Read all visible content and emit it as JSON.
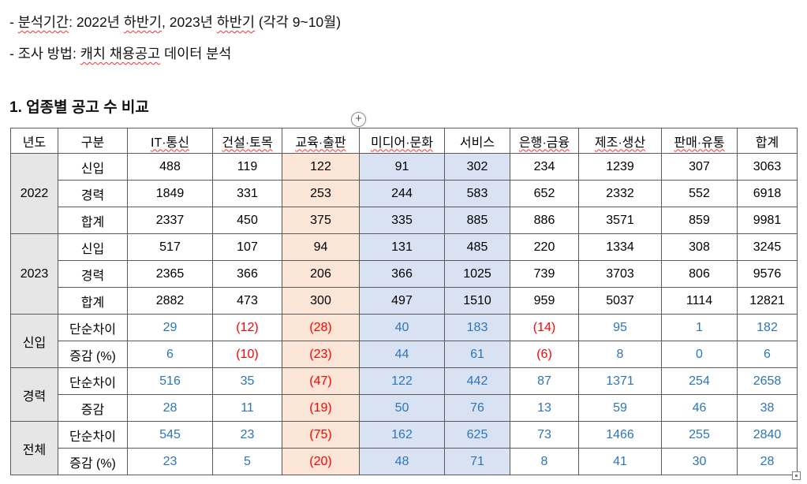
{
  "colors": {
    "orange_column_bg": "#FBE5D6",
    "blue_column_bg": "#D9E2F3",
    "group_label_bg": "#E7E6E6",
    "diff_positive_text": "#2E75B6",
    "diff_negative_text": "#FF0000",
    "spellcheck_underline": "#FF2F2F",
    "table_border": "#595959"
  },
  "intro": {
    "bullets": [
      {
        "parts": [
          {
            "t": "- "
          },
          {
            "t": "분석기간",
            "wavy": true
          },
          {
            "t": ": 2022년 "
          },
          {
            "t": "하반기",
            "wavy": true
          },
          {
            "t": ", 2023년 "
          },
          {
            "t": "하반기",
            "wavy": true
          },
          {
            "t": " (각각 9~10월)"
          }
        ]
      },
      {
        "parts": [
          {
            "t": "- 조사 방법: "
          },
          {
            "t": "캐치 채용공고",
            "wavy": true
          },
          {
            "t": " 데이터 분석"
          }
        ]
      }
    ],
    "heading": "1. 업종별 공고 수 비교"
  },
  "handles": {
    "insert_plus": "+"
  },
  "table": {
    "columns": [
      "년도",
      "구분",
      "IT·통신",
      "건설·토목",
      "교육·출판",
      "미디어·문화",
      "서비스",
      "은행·금융",
      "제조·생산",
      "판매·유통",
      "합계"
    ],
    "misspelled_columns": [
      2,
      3,
      4,
      5,
      7,
      8,
      9
    ],
    "highlight_orange_value_index": 2,
    "highlight_blue_value_indexes": [
      3,
      4
    ],
    "groups": [
      {
        "label": "2022",
        "diff": false,
        "rows": [
          {
            "label": "신입",
            "bold": false,
            "values": [
              "488",
              "119",
              "122",
              "91",
              "302",
              "234",
              "1239",
              "307",
              "3063"
            ]
          },
          {
            "label": "경력",
            "bold": false,
            "values": [
              "1849",
              "331",
              "253",
              "244",
              "583",
              "652",
              "2332",
              "552",
              "6918"
            ]
          },
          {
            "label": "합계",
            "bold": true,
            "values": [
              "2337",
              "450",
              "375",
              "335",
              "885",
              "886",
              "3571",
              "859",
              "9981"
            ]
          }
        ]
      },
      {
        "label": "2023",
        "diff": false,
        "rows": [
          {
            "label": "신입",
            "bold": false,
            "values": [
              "517",
              "107",
              "94",
              "131",
              "485",
              "220",
              "1334",
              "308",
              "3245"
            ]
          },
          {
            "label": "경력",
            "bold": false,
            "values": [
              "2365",
              "366",
              "206",
              "366",
              "1025",
              "739",
              "3703",
              "806",
              "9576"
            ]
          },
          {
            "label": "합계",
            "bold": true,
            "values": [
              "2882",
              "473",
              "300",
              "497",
              "1510",
              "959",
              "5037",
              "1114",
              "12821"
            ]
          }
        ]
      },
      {
        "label": "신입",
        "diff": true,
        "rows": [
          {
            "label": "단순차이",
            "bold": false,
            "values": [
              "29",
              "(12)",
              "(28)",
              "40",
              "183",
              "(14)",
              "95",
              "1",
              "182"
            ]
          },
          {
            "label": "증감 (%)",
            "bold": false,
            "values": [
              "6",
              "(10)",
              "(23)",
              "44",
              "61",
              "(6)",
              "8",
              "0",
              "6"
            ]
          }
        ]
      },
      {
        "label": "경력",
        "diff": true,
        "rows": [
          {
            "label": "단순차이",
            "bold": false,
            "values": [
              "516",
              "35",
              "(47)",
              "122",
              "442",
              "87",
              "1371",
              "254",
              "2658"
            ]
          },
          {
            "label": "증감",
            "bold": false,
            "values": [
              "28",
              "11",
              "(19)",
              "50",
              "76",
              "13",
              "59",
              "46",
              "38"
            ]
          }
        ]
      },
      {
        "label": "전체",
        "diff": true,
        "rows": [
          {
            "label": "단순차이",
            "bold": false,
            "values": [
              "545",
              "23",
              "(75)",
              "162",
              "625",
              "73",
              "1466",
              "255",
              "2840"
            ]
          },
          {
            "label": "증감 (%)",
            "bold": false,
            "values": [
              "23",
              "5",
              "(20)",
              "48",
              "71",
              "8",
              "41",
              "30",
              "28"
            ]
          }
        ]
      }
    ]
  }
}
